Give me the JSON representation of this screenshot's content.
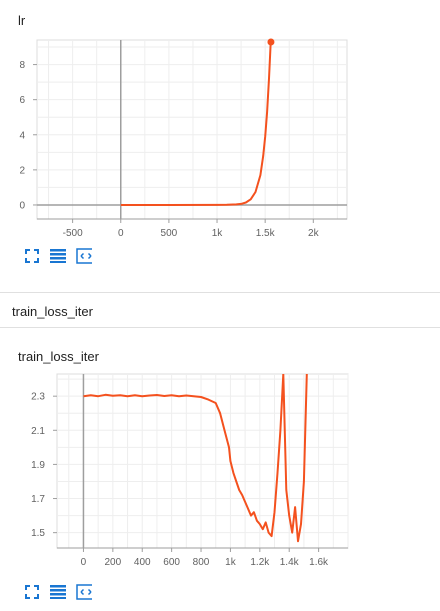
{
  "lr_card": {
    "title": "lr"
  },
  "section_header": {
    "title": "train_loss_iter"
  },
  "loss_card": {
    "title": "train_loss_iter"
  },
  "toolbar": {
    "icons": [
      "fit-domain-icon",
      "toggle-y-log-icon",
      "expand-chart-icon"
    ],
    "color": "#1976d2"
  },
  "chart_data": [
    {
      "type": "line",
      "title": "lr",
      "color": "#f4511e",
      "x_ticks": [
        -500,
        0,
        500,
        1000,
        1500,
        2000
      ],
      "x_tick_labels": [
        "-500",
        "0",
        "500",
        "1k",
        "1.5k",
        "2k"
      ],
      "y_ticks": [
        0,
        2,
        4,
        6,
        8
      ],
      "y_tick_labels": [
        "0",
        "2",
        "4",
        "6",
        "8"
      ],
      "xlim": [
        -870,
        2350
      ],
      "ylim": [
        -0.8,
        9.4
      ],
      "grid": true,
      "series": [
        {
          "x": [
            0,
            500,
            1000,
            1100,
            1200,
            1250,
            1300,
            1350,
            1400,
            1450,
            1480,
            1500,
            1520,
            1540,
            1560
          ],
          "y": [
            0,
            0,
            0.003,
            0.008,
            0.03,
            0.06,
            0.14,
            0.32,
            0.74,
            1.7,
            2.8,
            3.9,
            5.3,
            7.2,
            9.5
          ]
        }
      ]
    },
    {
      "type": "line",
      "title": "train_loss_iter",
      "color": "#f4511e",
      "x_ticks": [
        0,
        200,
        400,
        600,
        800,
        1000,
        1200,
        1400,
        1600
      ],
      "x_tick_labels": [
        "0",
        "200",
        "400",
        "600",
        "800",
        "1k",
        "1.2k",
        "1.4k",
        "1.6k"
      ],
      "y_ticks": [
        1.5,
        1.7,
        1.9,
        2.1,
        2.3
      ],
      "y_tick_labels": [
        "1.5",
        "1.7",
        "1.9",
        "2.1",
        "2.3"
      ],
      "xlim": [
        -180,
        1800
      ],
      "ylim": [
        1.41,
        2.43
      ],
      "grid": true,
      "series": [
        {
          "x": [
            0,
            50,
            100,
            150,
            200,
            250,
            300,
            350,
            400,
            450,
            500,
            550,
            600,
            650,
            700,
            750,
            800,
            850,
            900,
            930,
            960,
            990,
            1000,
            1020,
            1040,
            1060,
            1080,
            1100,
            1120,
            1140,
            1160,
            1180,
            1200,
            1220,
            1240,
            1260,
            1280,
            1300,
            1320,
            1340,
            1360,
            1380,
            1400,
            1420,
            1440,
            1460,
            1480,
            1500,
            1520
          ],
          "y": [
            2.3,
            2.305,
            2.3,
            2.308,
            2.302,
            2.306,
            2.3,
            2.305,
            2.299,
            2.304,
            2.307,
            2.301,
            2.305,
            2.299,
            2.304,
            2.3,
            2.295,
            2.28,
            2.26,
            2.2,
            2.1,
            2.0,
            1.92,
            1.85,
            1.8,
            1.75,
            1.72,
            1.68,
            1.64,
            1.6,
            1.62,
            1.57,
            1.55,
            1.52,
            1.56,
            1.5,
            1.48,
            1.62,
            1.85,
            2.1,
            2.43,
            1.75,
            1.6,
            1.5,
            1.65,
            1.45,
            1.55,
            1.8,
            2.43
          ]
        }
      ]
    }
  ]
}
